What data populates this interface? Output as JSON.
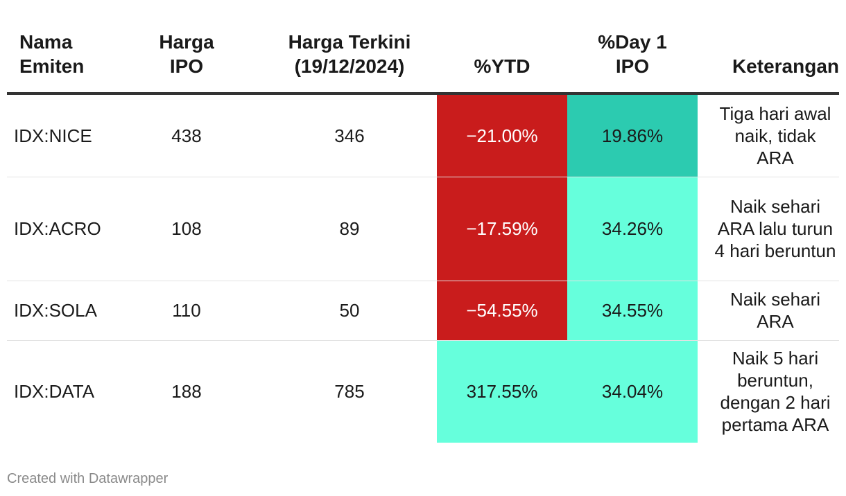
{
  "chart_data": {
    "type": "table",
    "columns": [
      {
        "line1": "Nama",
        "line2": "Emiten"
      },
      {
        "line1": "Harga",
        "line2": "IPO"
      },
      {
        "line1": "Harga Terkini",
        "line2": "(19/12/2024)"
      },
      {
        "line1": "",
        "line2": "%YTD"
      },
      {
        "line1": "%Day 1",
        "line2": "IPO"
      },
      {
        "line1": "",
        "line2": "Keterangan"
      }
    ],
    "rows": [
      {
        "emiten": "IDX:NICE",
        "harga_ipo": "438",
        "harga_terkini": "346",
        "ytd": "−21.00%",
        "day1": "19.86%",
        "keterangan": "Tiga hari awal naik, tidak ARA"
      },
      {
        "emiten": "IDX:ACRO",
        "harga_ipo": "108",
        "harga_terkini": "89",
        "ytd": "−17.59%",
        "day1": "34.26%",
        "keterangan": "Naik sehari ARA lalu turun 4 hari beruntun"
      },
      {
        "emiten": "IDX:SOLA",
        "harga_ipo": "110",
        "harga_terkini": "50",
        "ytd": "−54.55%",
        "day1": "34.55%",
        "keterangan": "Naik sehari ARA"
      },
      {
        "emiten": "IDX:DATA",
        "harga_ipo": "188",
        "harga_terkini": "785",
        "ytd": "317.55%",
        "day1": "34.04%",
        "keterangan": "Naik 5 hari beruntun, dengan 2 hari pertama ARA"
      }
    ],
    "cell_colors": {
      "negative": "#c91c1c",
      "positive_strong": "#2ccbb0",
      "positive": "#66ffdc"
    }
  },
  "footer": "Created with Datawrapper"
}
